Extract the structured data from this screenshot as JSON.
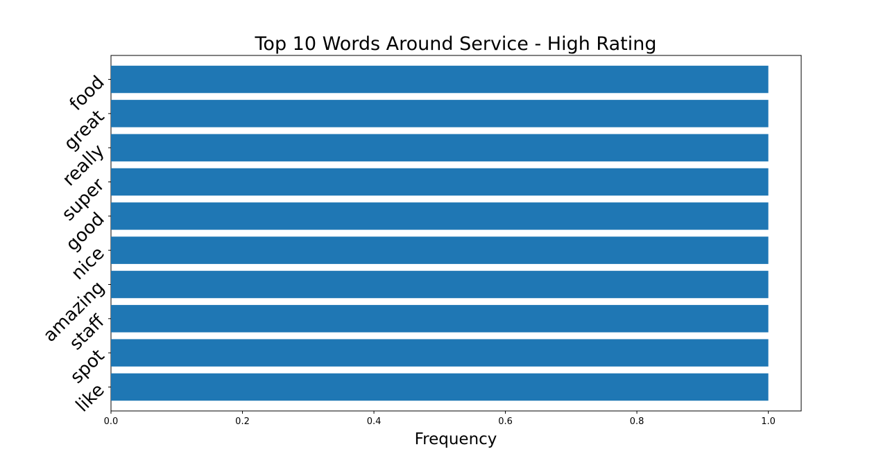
{
  "chart_data": {
    "type": "bar",
    "orientation": "horizontal",
    "title": "Top 10 Words Around Service - High Rating",
    "xlabel": "Frequency",
    "ylabel": "",
    "categories": [
      "food",
      "great",
      "really",
      "super",
      "good",
      "nice",
      "amazing",
      "staff",
      "spot",
      "like"
    ],
    "values": [
      1,
      1,
      1,
      1,
      1,
      1,
      1,
      1,
      1,
      1
    ],
    "xlim": [
      0,
      1.05
    ],
    "xticks": [
      "0.0",
      "0.2",
      "0.4",
      "0.6",
      "0.8",
      "1.0"
    ],
    "bar_color": "#1f77b4",
    "grid": false,
    "legend": "none"
  }
}
